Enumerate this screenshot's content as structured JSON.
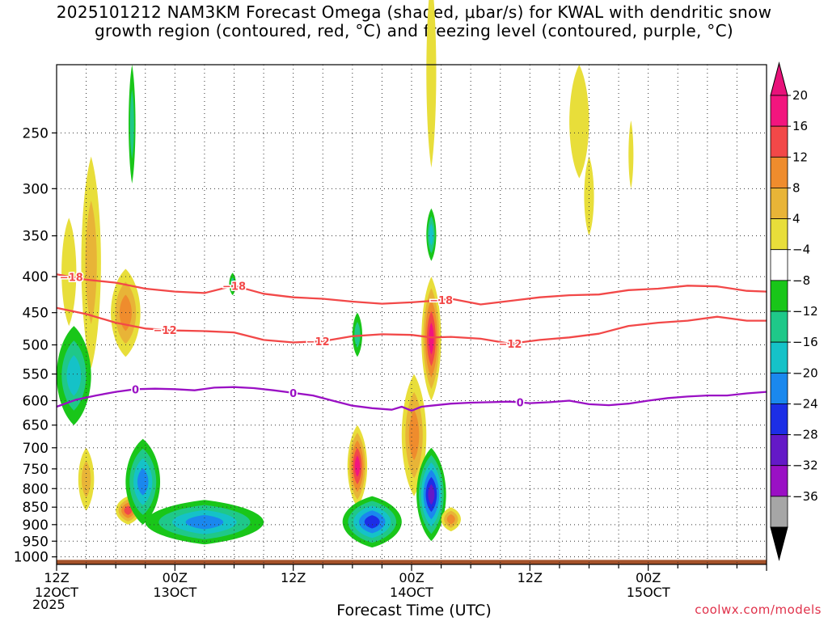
{
  "title_line1": "2025101212 NAM3KM Forecast Omega (shaded, μbar/s) for KWAL with dendritic snow",
  "title_line2": "growth region (contoured, red, °C) and freezing level (contoured, purple, °C)",
  "credit": "coolwx.com/models",
  "chart_data": {
    "type": "heatmap",
    "title": "2025101212 NAM3KM Forecast Omega (shaded, μbar/s) for KWAL with dendritic snow growth region (contoured, red, °C) and freezing level (contoured, purple, °C)",
    "xlabel": "Forecast Time (UTC)",
    "ylabel": "",
    "x_unit": "forecast hour from 2025-10-12 12Z",
    "xlim": [
      0,
      72
    ],
    "ylim": [
      1025,
      200
    ],
    "y_scale": "pressure (hPa), decreasing upward",
    "yticks": [
      250,
      300,
      350,
      400,
      450,
      500,
      550,
      600,
      650,
      700,
      750,
      800,
      850,
      900,
      950,
      1000
    ],
    "xticks": [
      {
        "x": 0,
        "line1": "12Z",
        "line2": "12OCT"
      },
      {
        "x": 12,
        "line1": "00Z",
        "line2": "13OCT"
      },
      {
        "x": 24,
        "line1": "12Z",
        "line2": ""
      },
      {
        "x": 36,
        "line1": "00Z",
        "line2": "14OCT"
      },
      {
        "x": 48,
        "line1": "12Z",
        "line2": ""
      },
      {
        "x": 60,
        "line1": "00Z",
        "line2": "15OCT"
      }
    ],
    "x_first_label_year": "2025",
    "grid": "dotted",
    "surface_pressure": 1010,
    "surface_color": "#a5522a",
    "colorbar": {
      "labels": [
        "20",
        "16",
        "12",
        "8",
        "4",
        "−4",
        "−8",
        "−12",
        "−16",
        "−20",
        "−24",
        "−28",
        "−32",
        "−36"
      ],
      "colors": [
        "#f2157e",
        "#f24848",
        "#ef8c2d",
        "#e8b437",
        "#e8de3a",
        "#ffffff",
        "#19c619",
        "#1fc889",
        "#15c2c8",
        "#1a88ee",
        "#1c2ee6",
        "#6419c7",
        "#9a10c4",
        "#a6a6a6"
      ],
      "top_color": "#e8127a",
      "bottom_color": "#000000"
    },
    "series": [
      {
        "name": "-18",
        "color": "#f24848",
        "x": [
          0,
          3,
          6,
          9,
          12,
          15,
          18,
          21,
          24,
          27,
          30,
          33,
          36,
          38,
          40,
          43,
          46,
          49,
          52,
          55,
          58,
          61,
          64,
          67,
          70,
          72
        ],
        "y": [
          397,
          404,
          408,
          416,
          420,
          422,
          412,
          423,
          428,
          430,
          434,
          437,
          435,
          433,
          430,
          438,
          433,
          428,
          425,
          424,
          418,
          416,
          412,
          413,
          419,
          420
        ],
        "labels": [
          {
            "x": 1.5,
            "text": "−18"
          },
          {
            "x": 18,
            "text": "−18"
          },
          {
            "x": 39,
            "text": "−18"
          }
        ]
      },
      {
        "name": "-12",
        "color": "#f24848",
        "x": [
          0,
          3,
          6,
          9,
          12,
          15,
          18,
          21,
          24,
          27,
          30,
          33,
          36,
          38,
          40,
          43,
          46,
          49,
          52,
          55,
          58,
          61,
          64,
          67,
          70,
          72
        ],
        "y": [
          443,
          452,
          465,
          474,
          477,
          478,
          480,
          492,
          496,
          494,
          486,
          483,
          484,
          488,
          487,
          490,
          498,
          492,
          488,
          482,
          470,
          465,
          462,
          456,
          462,
          462
        ],
        "labels": [
          {
            "x": 11,
            "text": "−12"
          },
          {
            "x": 26.5,
            "text": "−12"
          },
          {
            "x": 46,
            "text": "−12"
          }
        ]
      },
      {
        "name": "0",
        "color": "#9a10c4",
        "x": [
          0,
          2,
          4,
          6,
          8,
          10,
          12,
          14,
          16,
          18,
          20,
          22,
          24,
          26,
          28,
          30,
          32,
          34,
          35,
          36,
          37,
          38,
          40,
          42,
          44,
          46,
          48,
          50,
          52,
          54,
          56,
          58,
          60,
          62,
          64,
          66,
          68,
          70,
          72
        ],
        "y": [
          612,
          598,
          590,
          583,
          578,
          577,
          578,
          580,
          575,
          574,
          576,
          580,
          585,
          590,
          600,
          610,
          615,
          618,
          612,
          620,
          612,
          610,
          606,
          604,
          603,
          602,
          605,
          603,
          600,
          607,
          609,
          606,
          600,
          595,
          592,
          590,
          590,
          586,
          583
        ],
        "labels": [
          {
            "x": 8,
            "text": "0"
          },
          {
            "x": 24,
            "text": "0"
          },
          {
            "x": 47,
            "text": "0"
          }
        ]
      }
    ],
    "omega_features": [
      {
        "x": [
          0.5,
          2.0
        ],
        "p": [
          330,
          470
        ],
        "value": 4,
        "peak": 4
      },
      {
        "x": [
          2.5,
          4.5
        ],
        "p": [
          270,
          540
        ],
        "value": 4,
        "peak": 8
      },
      {
        "x": [
          2.2,
          3.8
        ],
        "p": [
          700,
          860
        ],
        "value": 4,
        "peak": 8
      },
      {
        "x": [
          5.5,
          8.5
        ],
        "p": [
          390,
          520
        ],
        "value": 4,
        "peak": 12
      },
      {
        "x": [
          6.0,
          8.5
        ],
        "p": [
          820,
          900
        ],
        "value": 4,
        "peak": 16
      },
      {
        "x": [
          7.3,
          8.0
        ],
        "p": [
          200,
          295
        ],
        "value": -4,
        "peak": -8
      },
      {
        "x": [
          0,
          3.5
        ],
        "p": [
          470,
          650
        ],
        "value": -4,
        "peak": -12
      },
      {
        "x": [
          7.0,
          10.5
        ],
        "p": [
          680,
          900
        ],
        "value": -4,
        "peak": -16
      },
      {
        "x": [
          9.0,
          21.0
        ],
        "p": [
          830,
          960
        ],
        "value": -4,
        "peak": -16
      },
      {
        "x": [
          17.5,
          18.2
        ],
        "p": [
          395,
          425
        ],
        "value": -4,
        "peak": -8
      },
      {
        "x": [
          29.5,
          31.5
        ],
        "p": [
          650,
          850
        ],
        "value": 4,
        "peak": 20
      },
      {
        "x": [
          30.0,
          31.0
        ],
        "p": [
          450,
          520
        ],
        "value": -4,
        "peak": -8
      },
      {
        "x": [
          29.0,
          35.0
        ],
        "p": [
          820,
          970
        ],
        "value": -4,
        "peak": -20
      },
      {
        "x": [
          35.0,
          37.5
        ],
        "p": [
          550,
          820
        ],
        "value": 4,
        "peak": 12
      },
      {
        "x": [
          37.0,
          39.0
        ],
        "p": [
          400,
          600
        ],
        "value": 4,
        "peak": 20
      },
      {
        "x": [
          37.5,
          38.5
        ],
        "p": [
          150,
          280
        ],
        "value": 4,
        "peak": 4
      },
      {
        "x": [
          37.5,
          38.5
        ],
        "p": [
          320,
          380
        ],
        "value": -4,
        "peak": -12
      },
      {
        "x": [
          36.5,
          39.5
        ],
        "p": [
          700,
          950
        ],
        "value": -4,
        "peak": -24
      },
      {
        "x": [
          39.0,
          41.0
        ],
        "p": [
          850,
          920
        ],
        "value": 4,
        "peak": 12
      },
      {
        "x": [
          52.0,
          54.0
        ],
        "p": [
          200,
          290
        ],
        "value": 4,
        "peak": 4
      },
      {
        "x": [
          53.5,
          54.5
        ],
        "p": [
          270,
          350
        ],
        "value": 4,
        "peak": 4
      },
      {
        "x": [
          58.0,
          58.5
        ],
        "p": [
          240,
          300
        ],
        "value": 4,
        "peak": 4
      }
    ]
  }
}
